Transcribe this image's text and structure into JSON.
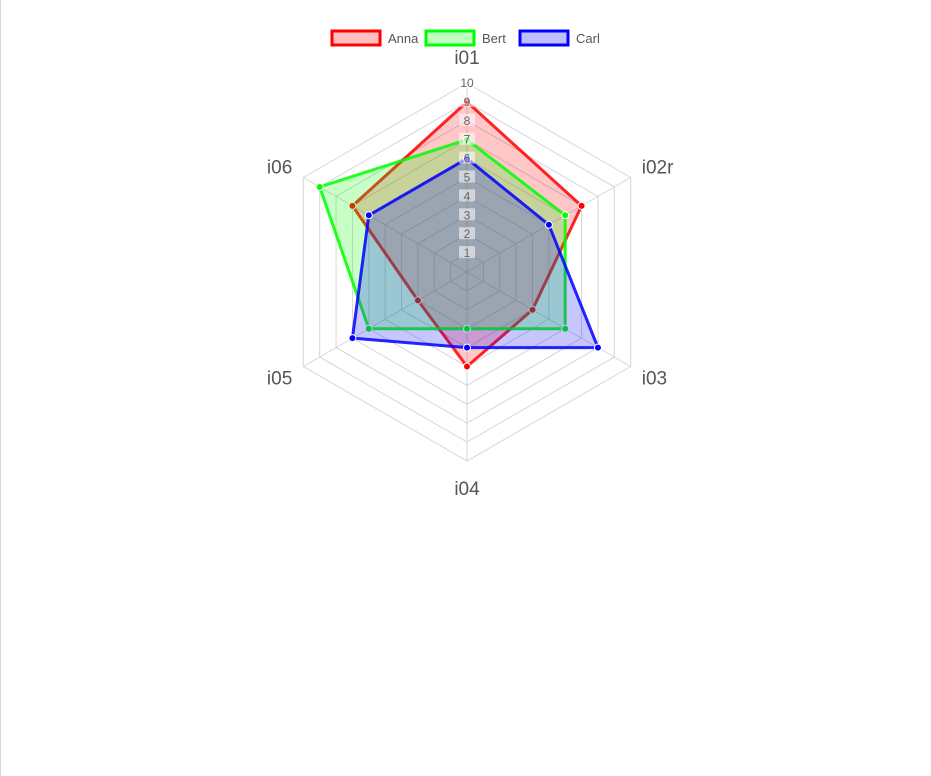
{
  "chart_data": {
    "type": "radar",
    "axes": [
      "i01",
      "i02r",
      "i03",
      "i04",
      "i05",
      "i06"
    ],
    "rmin": 0,
    "rmax": 10,
    "ticks": [
      "1",
      "2",
      "3",
      "4",
      "5",
      "6",
      "7",
      "8",
      "9",
      "10"
    ],
    "grid": true,
    "legend_position": "top",
    "series": [
      {
        "name": "Anna",
        "color": "#ff0000",
        "values": [
          9,
          7,
          4,
          5,
          3,
          7
        ]
      },
      {
        "name": "Bert",
        "color": "#00ff00",
        "values": [
          7,
          6,
          6,
          3,
          6,
          9
        ]
      },
      {
        "name": "Carl",
        "color": "#0000ff",
        "values": [
          6,
          5,
          8,
          4,
          7,
          6
        ]
      }
    ]
  }
}
